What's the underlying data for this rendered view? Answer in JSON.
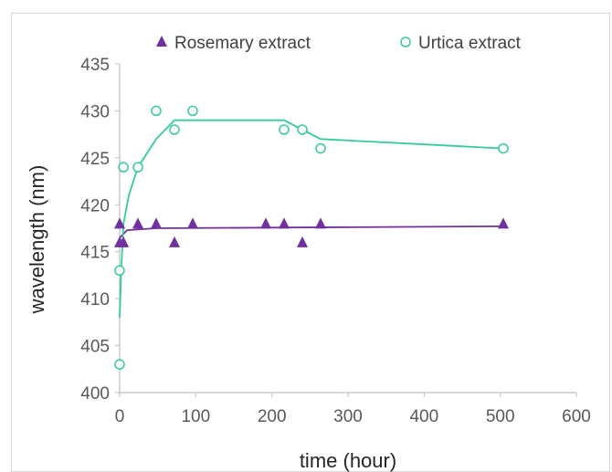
{
  "chart_data": {
    "type": "scatter",
    "xlabel": "time (hour)",
    "ylabel": "wavelength (nm)",
    "xlim": [
      0,
      600
    ],
    "ylim": [
      400,
      435
    ],
    "x_ticks": [
      0,
      100,
      200,
      300,
      400,
      500,
      600
    ],
    "y_ticks": [
      400,
      405,
      410,
      415,
      420,
      425,
      430,
      435
    ],
    "grid": false,
    "legend_position": "top",
    "series": [
      {
        "name": "Rosemary extract",
        "marker": "filled-triangle",
        "color": "#7030a0",
        "points": [
          {
            "x": 0,
            "y": 418
          },
          {
            "x": 0,
            "y": 416
          },
          {
            "x": 5,
            "y": 416
          },
          {
            "x": 24,
            "y": 418
          },
          {
            "x": 48,
            "y": 418
          },
          {
            "x": 72,
            "y": 416
          },
          {
            "x": 96,
            "y": 418
          },
          {
            "x": 192,
            "y": 418
          },
          {
            "x": 216,
            "y": 418
          },
          {
            "x": 240,
            "y": 416
          },
          {
            "x": 264,
            "y": 418
          },
          {
            "x": 504,
            "y": 418
          }
        ],
        "trend": [
          {
            "x": 0,
            "y": 416.5
          },
          {
            "x": 10,
            "y": 417.3
          },
          {
            "x": 48,
            "y": 417.5
          },
          {
            "x": 504,
            "y": 417.7
          }
        ]
      },
      {
        "name": "Urtica extract",
        "marker": "open-circle",
        "color": "#33cc99",
        "points": [
          {
            "x": 0,
            "y": 403
          },
          {
            "x": 0,
            "y": 413
          },
          {
            "x": 5,
            "y": 424
          },
          {
            "x": 24,
            "y": 424
          },
          {
            "x": 48,
            "y": 430
          },
          {
            "x": 72,
            "y": 428
          },
          {
            "x": 96,
            "y": 430
          },
          {
            "x": 216,
            "y": 428
          },
          {
            "x": 240,
            "y": 428
          },
          {
            "x": 264,
            "y": 426
          },
          {
            "x": 504,
            "y": 426
          }
        ],
        "trend": [
          {
            "x": 0,
            "y": 408
          },
          {
            "x": 2,
            "y": 413
          },
          {
            "x": 5,
            "y": 418
          },
          {
            "x": 12,
            "y": 421
          },
          {
            "x": 24,
            "y": 424
          },
          {
            "x": 48,
            "y": 427
          },
          {
            "x": 72,
            "y": 429
          },
          {
            "x": 96,
            "y": 429
          },
          {
            "x": 216,
            "y": 429
          },
          {
            "x": 264,
            "y": 427
          },
          {
            "x": 504,
            "y": 426
          }
        ]
      }
    ]
  }
}
